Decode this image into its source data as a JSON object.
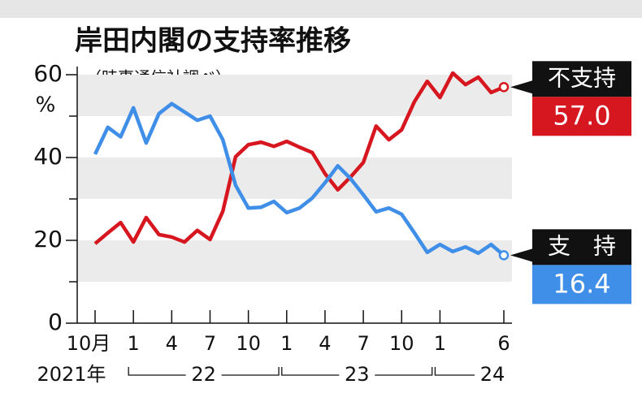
{
  "chart_data": {
    "type": "line",
    "title": "岸田内閣の支持率推移",
    "subtitle": "（時事通信社調べ）",
    "y_unit": "%",
    "categories": [
      "10月",
      null,
      null,
      "1",
      null,
      null,
      "4",
      null,
      null,
      "7",
      null,
      null,
      "10",
      null,
      null,
      "1",
      null,
      null,
      "4",
      null,
      null,
      "7",
      null,
      null,
      "10",
      null,
      null,
      "1",
      null,
      null,
      null,
      null,
      "6"
    ],
    "year_labels": [
      "2021年",
      "22",
      "23",
      "24"
    ],
    "series": [
      {
        "name": "不支持",
        "color": "#d7171f",
        "values": [
          19.2,
          21.8,
          24.3,
          19.6,
          25.5,
          21.4,
          20.8,
          19.6,
          22.4,
          20.2,
          27,
          40.2,
          43.1,
          43.7,
          42.7,
          43.9,
          42.5,
          41.2,
          36.1,
          32.2,
          35.3,
          38.8,
          47.6,
          44.3,
          46.7,
          53.5,
          58.4,
          54.5,
          60.4,
          57.6,
          59.4,
          55.7,
          57
        ],
        "value_labels": [
          null,
          null,
          null,
          null,
          null,
          null,
          null,
          null,
          null,
          null,
          null,
          null,
          null,
          null,
          null,
          null,
          null,
          null,
          null,
          null,
          null,
          null,
          null,
          null,
          null,
          null,
          null,
          null,
          null,
          null,
          null,
          null,
          "57.0"
        ]
      },
      {
        "name": "支　持",
        "color": "#3f8ee8",
        "values": [
          40.8,
          47.3,
          45,
          52,
          43.5,
          50.6,
          53,
          51,
          49,
          50,
          44.3,
          33.3,
          27.8,
          28,
          29.4,
          26.7,
          27.8,
          30.2,
          33.9,
          38,
          34.9,
          31,
          26.9,
          27.8,
          26.3,
          21.8,
          17.1,
          19,
          17.3,
          18.4,
          16.9,
          19,
          16.4
        ],
        "value_labels": [
          null,
          null,
          null,
          null,
          null,
          null,
          null,
          null,
          null,
          null,
          null,
          null,
          null,
          null,
          null,
          null,
          null,
          null,
          null,
          null,
          null,
          null,
          null,
          null,
          null,
          null,
          null,
          null,
          null,
          null,
          null,
          null,
          "16.4"
        ]
      }
    ],
    "ylim": [
      0,
      60
    ],
    "yticks": [
      0,
      20,
      40,
      60
    ],
    "minor_yticks": [
      10,
      30,
      50
    ],
    "grid": "bands"
  }
}
